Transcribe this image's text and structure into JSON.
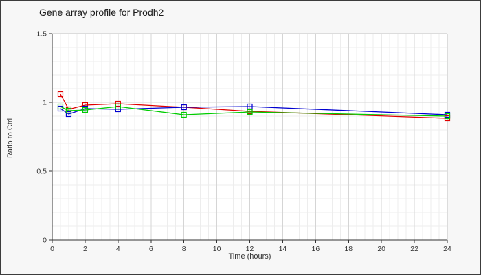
{
  "chart_data": {
    "type": "line",
    "title": "Gene array profile for Prodh2",
    "xlabel": "Time (hours)",
    "ylabel": "Ratio to Ctrl",
    "x": [
      0.5,
      1,
      2,
      4,
      8,
      12,
      24
    ],
    "series": [
      {
        "name": "red",
        "color": "#e00000",
        "values": [
          1.06,
          0.95,
          0.98,
          0.99,
          0.965,
          0.935,
          0.885
        ]
      },
      {
        "name": "blue",
        "color": "#0000d0",
        "values": [
          0.955,
          0.915,
          0.955,
          0.95,
          0.965,
          0.97,
          0.91
        ]
      },
      {
        "name": "green",
        "color": "#00cc00",
        "values": [
          0.97,
          0.94,
          0.945,
          0.97,
          0.91,
          0.93,
          0.9
        ]
      }
    ],
    "xlim": [
      0,
      24
    ],
    "ylim": [
      0,
      1.5
    ],
    "xticks": [
      0,
      2,
      4,
      6,
      8,
      10,
      12,
      14,
      16,
      18,
      20,
      22,
      24
    ],
    "xtick_labels": [
      "0",
      "2",
      "4",
      "6",
      "8",
      "10",
      "12",
      "14",
      "16",
      "18",
      "20",
      "22",
      "24"
    ],
    "yticks": [
      0,
      0.5,
      1,
      1.5
    ],
    "ytick_labels": [
      "0",
      "0.5",
      "1",
      "1.5"
    ],
    "x_minor_step": 0.5,
    "y_minor_step": 0.1,
    "grid": true,
    "legend": "none",
    "marker": "open-square"
  },
  "colors": {
    "background": "#f7f7f7",
    "plot_background": "#ffffff",
    "grid_minor": "#ededed",
    "grid_major": "#d5d5d5",
    "frame": "#c0c0c0",
    "axis": "#333333",
    "text": "#333333"
  }
}
